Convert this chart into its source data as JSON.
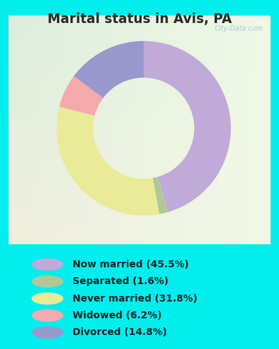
{
  "title": "Marital status in Avis, PA",
  "title_fontsize": 13.5,
  "title_fontweight": "bold",
  "title_color": "#2a2a2a",
  "bg_color": "#00EEEE",
  "chart_bg_top_left": "#ddeedd",
  "chart_bg_bottom_right": "#eef8ee",
  "slices": [
    45.5,
    1.6,
    31.8,
    6.2,
    14.8
  ],
  "slice_colors": [
    "#c0aad8",
    "#b0c898",
    "#eaeb96",
    "#f4aaaa",
    "#9898cc"
  ],
  "labels": [
    "Now married (45.5%)",
    "Separated (1.6%)",
    "Never married (31.8%)",
    "Widowed (6.2%)",
    "Divorced (14.8%)"
  ],
  "legend_fontsize": 10,
  "legend_color": "#222222",
  "donut_width": 0.42,
  "start_angle": 90,
  "watermark": "City-Data.com",
  "watermark_color": "#aacccc",
  "watermark_fontsize": 7
}
